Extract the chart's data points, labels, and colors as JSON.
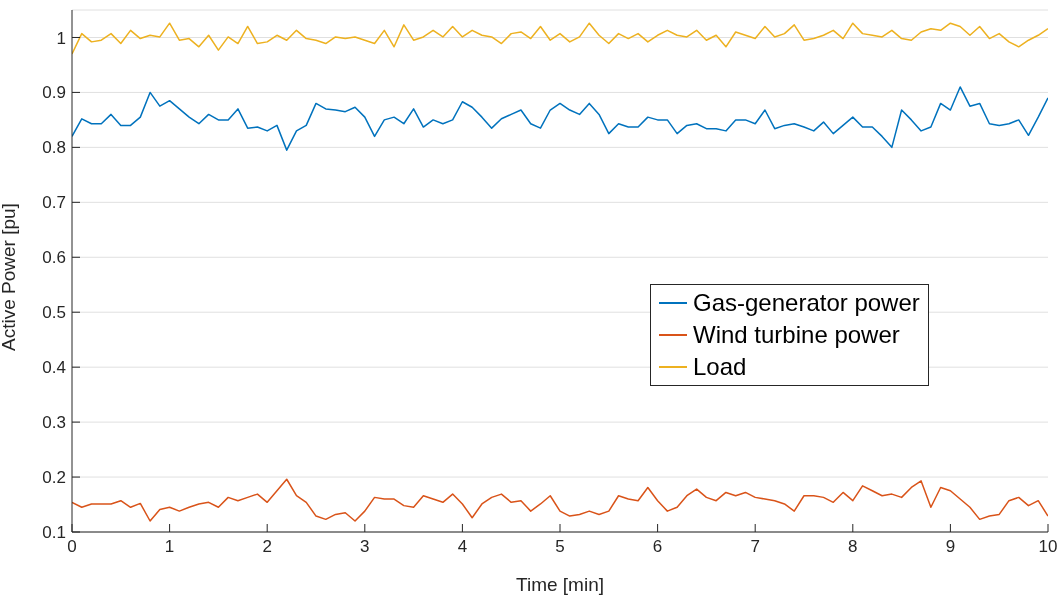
{
  "chart_data": {
    "type": "line",
    "xlabel": "Time [min]",
    "ylabel": "Active Power [pu]",
    "x": [
      0,
      0.1,
      0.2,
      0.3,
      0.4,
      0.5,
      0.6,
      0.7,
      0.8,
      0.9,
      1,
      1.1,
      1.2,
      1.3,
      1.4,
      1.5,
      1.6,
      1.7,
      1.8,
      1.9,
      2,
      2.1,
      2.2,
      2.3,
      2.4,
      2.5,
      2.6,
      2.7,
      2.8,
      2.9,
      3,
      3.1,
      3.2,
      3.3,
      3.4,
      3.5,
      3.6,
      3.7,
      3.8,
      3.9,
      4,
      4.1,
      4.2,
      4.3,
      4.4,
      4.5,
      4.6,
      4.7,
      4.8,
      4.9,
      5,
      5.1,
      5.2,
      5.3,
      5.4,
      5.5,
      5.6,
      5.7,
      5.8,
      5.9,
      6,
      6.1,
      6.2,
      6.3,
      6.4,
      6.5,
      6.6,
      6.7,
      6.8,
      6.9,
      7,
      7.1,
      7.2,
      7.3,
      7.4,
      7.5,
      7.6,
      7.7,
      7.8,
      7.9,
      8,
      8.1,
      8.2,
      8.3,
      8.4,
      8.5,
      8.6,
      8.7,
      8.8,
      8.9,
      9,
      9.1,
      9.2,
      9.3,
      9.4,
      9.5,
      9.6,
      9.7,
      9.8,
      9.9,
      10
    ],
    "series": [
      {
        "name": "Gas-generator power",
        "color": "#0072bd",
        "values": [
          0.82,
          0.852,
          0.843,
          0.843,
          0.86,
          0.84,
          0.84,
          0.855,
          0.9,
          0.875,
          0.885,
          0.87,
          0.855,
          0.843,
          0.86,
          0.85,
          0.85,
          0.87,
          0.835,
          0.837,
          0.83,
          0.84,
          0.795,
          0.83,
          0.84,
          0.88,
          0.87,
          0.868,
          0.865,
          0.873,
          0.855,
          0.82,
          0.85,
          0.855,
          0.843,
          0.87,
          0.837,
          0.85,
          0.843,
          0.85,
          0.883,
          0.873,
          0.855,
          0.835,
          0.852,
          0.86,
          0.868,
          0.843,
          0.835,
          0.868,
          0.88,
          0.868,
          0.86,
          0.88,
          0.86,
          0.825,
          0.843,
          0.837,
          0.837,
          0.855,
          0.85,
          0.85,
          0.825,
          0.84,
          0.843,
          0.834,
          0.834,
          0.83,
          0.85,
          0.85,
          0.843,
          0.868,
          0.834,
          0.84,
          0.843,
          0.837,
          0.83,
          0.846,
          0.825,
          0.84,
          0.855,
          0.837,
          0.837,
          0.82,
          0.8,
          0.868,
          0.85,
          0.83,
          0.837,
          0.88,
          0.868,
          0.91,
          0.875,
          0.88,
          0.843,
          0.84,
          0.843,
          0.85,
          0.822,
          0.855,
          0.89
        ]
      },
      {
        "name": "Wind turbine power",
        "color": "#d95319",
        "values": [
          0.154,
          0.145,
          0.151,
          0.151,
          0.151,
          0.157,
          0.145,
          0.152,
          0.12,
          0.141,
          0.145,
          0.138,
          0.145,
          0.151,
          0.154,
          0.145,
          0.163,
          0.157,
          0.163,
          0.169,
          0.154,
          0.175,
          0.196,
          0.166,
          0.154,
          0.129,
          0.123,
          0.132,
          0.135,
          0.12,
          0.138,
          0.163,
          0.16,
          0.16,
          0.148,
          0.145,
          0.166,
          0.16,
          0.154,
          0.169,
          0.151,
          0.126,
          0.151,
          0.163,
          0.169,
          0.154,
          0.157,
          0.138,
          0.151,
          0.166,
          0.138,
          0.129,
          0.132,
          0.138,
          0.132,
          0.138,
          0.166,
          0.16,
          0.157,
          0.181,
          0.157,
          0.138,
          0.145,
          0.166,
          0.178,
          0.163,
          0.157,
          0.172,
          0.166,
          0.172,
          0.163,
          0.16,
          0.157,
          0.151,
          0.138,
          0.166,
          0.166,
          0.163,
          0.154,
          0.172,
          0.157,
          0.184,
          0.175,
          0.166,
          0.169,
          0.163,
          0.181,
          0.193,
          0.145,
          0.181,
          0.175,
          0.16,
          0.145,
          0.123,
          0.129,
          0.132,
          0.157,
          0.163,
          0.148,
          0.157,
          0.129
        ]
      },
      {
        "name": "Load",
        "color": "#edb120",
        "values": [
          0.97,
          1.007,
          0.992,
          0.995,
          1.007,
          0.989,
          1.013,
          0.998,
          1.004,
          1.001,
          1.026,
          0.995,
          0.998,
          0.983,
          1.004,
          0.977,
          1.001,
          0.989,
          1.02,
          0.989,
          0.992,
          1.004,
          0.995,
          1.013,
          0.998,
          0.995,
          0.989,
          1.001,
          0.998,
          1.001,
          0.995,
          0.989,
          1.013,
          0.983,
          1.023,
          0.995,
          1.001,
          1.013,
          1.001,
          1.02,
          1.001,
          1.013,
          1.004,
          1.001,
          0.989,
          1.007,
          1.01,
          0.998,
          1.02,
          0.995,
          1.007,
          0.992,
          1.001,
          1.026,
          1.004,
          0.989,
          1.007,
          0.998,
          1.007,
          0.992,
          1.004,
          1.013,
          1.004,
          1.001,
          1.013,
          0.995,
          1.004,
          0.983,
          1.01,
          1.004,
          0.998,
          1.02,
          1.001,
          1.007,
          1.023,
          0.995,
          0.998,
          1.004,
          1.013,
          0.998,
          1.026,
          1.007,
          1.004,
          1.001,
          1.013,
          0.998,
          0.995,
          1.01,
          1.016,
          1.013,
          1.026,
          1.02,
          1.004,
          1.02,
          0.998,
          1.007,
          0.992,
          0.983,
          0.995,
          1.004,
          1.016
        ]
      }
    ],
    "xlim": [
      0,
      10
    ],
    "xticks": [
      0,
      1,
      2,
      3,
      4,
      5,
      6,
      7,
      8,
      9,
      10
    ],
    "ylim": [
      0.1,
      1.05
    ],
    "yticks": [
      0.1,
      0.2,
      0.3,
      0.4,
      0.5,
      0.6,
      0.7,
      0.8,
      0.9,
      1
    ],
    "grid": "y",
    "legend": "right",
    "marker": "none",
    "line_style": "solid"
  }
}
